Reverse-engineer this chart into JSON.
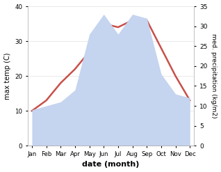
{
  "months": [
    "Jan",
    "Feb",
    "Mar",
    "Apr",
    "May",
    "Jun",
    "Jul",
    "Aug",
    "Sep",
    "Oct",
    "Nov",
    "Dec"
  ],
  "temperature": [
    10,
    13,
    18,
    22,
    27,
    35,
    34,
    36,
    36,
    28,
    20,
    13
  ],
  "precipitation": [
    9,
    10,
    11,
    14,
    28,
    33,
    28,
    33,
    32,
    18,
    13,
    12
  ],
  "temp_color": "#c8504a",
  "precip_fill_color": "#c5d4ef",
  "xlabel": "date (month)",
  "ylabel_left": "max temp (C)",
  "ylabel_right": "med. precipitation (kg/m2)",
  "ylim_left": [
    0,
    40
  ],
  "ylim_right": [
    0,
    35
  ],
  "yticks_left": [
    0,
    10,
    20,
    30,
    40
  ],
  "yticks_right": [
    0,
    5,
    10,
    15,
    20,
    25,
    30,
    35
  ],
  "background_color": "#ffffff"
}
